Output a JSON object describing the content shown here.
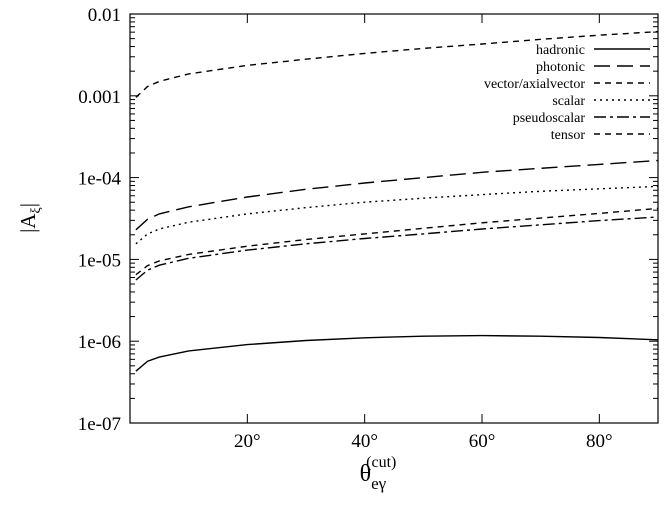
{
  "chart_data": {
    "type": "line",
    "title": "",
    "xlabel": {
      "main": "θ",
      "sub": "eγ",
      "sup": "(cut)"
    },
    "ylabel": {
      "prefix": "|A",
      "sub": "ξ",
      "suffix": "|"
    },
    "xlim": [
      0,
      90
    ],
    "ylim": [
      1e-07,
      0.01
    ],
    "yscale": "log",
    "grid": false,
    "legend_position": "top-right",
    "x_ticks": [
      {
        "value": 20,
        "label": "20°"
      },
      {
        "value": 40,
        "label": "40°"
      },
      {
        "value": 60,
        "label": "60°"
      },
      {
        "value": 80,
        "label": "80°"
      }
    ],
    "y_ticks": [
      {
        "value": 0.01,
        "label": "0.01"
      },
      {
        "value": 0.001,
        "label": "0.001"
      },
      {
        "value": 0.0001,
        "label": "1e-04"
      },
      {
        "value": 1e-05,
        "label": "1e-05"
      },
      {
        "value": 1e-06,
        "label": "1e-06"
      },
      {
        "value": 1e-07,
        "label": "1e-07"
      }
    ],
    "series": [
      {
        "name": "hadronic",
        "dash": "solid",
        "x": [
          1,
          3,
          5,
          10,
          20,
          30,
          40,
          50,
          60,
          70,
          80,
          90
        ],
        "y": [
          4.3e-07,
          5.7e-07,
          6.4e-07,
          7.6e-07,
          9.1e-07,
          1.02e-06,
          1.1e-06,
          1.15e-06,
          1.17e-06,
          1.15e-06,
          1.11e-06,
          1.04e-06
        ]
      },
      {
        "name": "photonic",
        "dash": "longdash",
        "x": [
          1,
          3,
          5,
          10,
          20,
          30,
          40,
          50,
          60,
          70,
          80,
          90
        ],
        "y": [
          2.3e-05,
          3.1e-05,
          3.6e-05,
          4.4e-05,
          5.8e-05,
          7.2e-05,
          8.6e-05,
          0.0001,
          0.000116,
          0.00013,
          0.000145,
          0.000162
        ]
      },
      {
        "name": "vector/axialvector",
        "dash": "shortdash",
        "x": [
          1,
          3,
          5,
          10,
          20,
          30,
          40,
          50,
          60,
          70,
          80,
          90
        ],
        "y": [
          6.5e-06,
          8.4e-06,
          9.6e-06,
          1.15e-05,
          1.45e-05,
          1.75e-05,
          2.05e-05,
          2.4e-05,
          2.8e-05,
          3.2e-05,
          3.65e-05,
          4.2e-05
        ]
      },
      {
        "name": "scalar",
        "dash": "dotted",
        "x": [
          1,
          3,
          5,
          10,
          20,
          30,
          40,
          50,
          60,
          70,
          80,
          90
        ],
        "y": [
          1.55e-05,
          2.05e-05,
          2.35e-05,
          2.85e-05,
          3.6e-05,
          4.3e-05,
          5e-05,
          5.6e-05,
          6.2e-05,
          6.8e-05,
          7.3e-05,
          7.8e-05
        ]
      },
      {
        "name": "pseudoscalar",
        "dash": "dashdot",
        "x": [
          1,
          3,
          5,
          10,
          20,
          30,
          40,
          50,
          60,
          70,
          80,
          90
        ],
        "y": [
          5.6e-06,
          7.4e-06,
          8.5e-06,
          1.03e-05,
          1.3e-05,
          1.55e-05,
          1.8e-05,
          2.05e-05,
          2.35e-05,
          2.65e-05,
          2.98e-05,
          3.3e-05
        ]
      },
      {
        "name": "tensor",
        "dash": "shortdash",
        "x": [
          1,
          3,
          5,
          10,
          20,
          30,
          40,
          50,
          60,
          70,
          80,
          90
        ],
        "y": [
          0.00096,
          0.0013,
          0.0015,
          0.00185,
          0.00235,
          0.0028,
          0.0033,
          0.0038,
          0.0043,
          0.0049,
          0.0055,
          0.0061
        ]
      }
    ]
  }
}
